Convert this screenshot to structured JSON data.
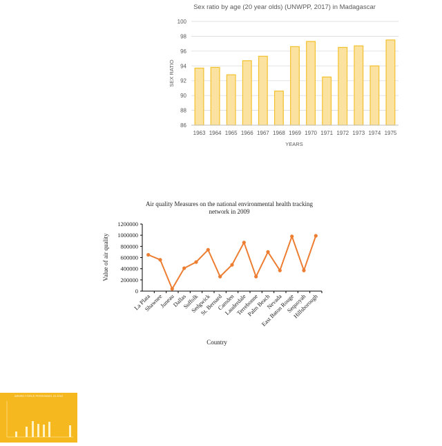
{
  "chart_data": [
    {
      "type": "bar",
      "title": "Sex ratio by age (20 year olds) (UNWPP, 2017) in Madagascar",
      "xlabel": "YEARS",
      "ylabel": "SEX RATIO",
      "categories": [
        "1963",
        "1964",
        "1965",
        "1966",
        "1967",
        "1968",
        "1969",
        "1970",
        "1971",
        "1972",
        "1973",
        "1974",
        "1975"
      ],
      "values": [
        93.7,
        93.8,
        92.8,
        94.7,
        95.3,
        90.6,
        96.6,
        97.3,
        92.5,
        96.5,
        96.7,
        94.0,
        97.5
      ],
      "ylim": [
        86,
        100
      ],
      "yticks": [
        "86",
        "88",
        "90",
        "92",
        "94",
        "96",
        "98",
        "100"
      ],
      "grid": true,
      "colors": {
        "fill": "#fce2a0",
        "stroke": "#f2c12e",
        "grid": "#d9d9d9",
        "text": "#595959"
      }
    },
    {
      "type": "line",
      "title_line1": "Air quality Measures on the national environmental health tracking",
      "title_line2": "network in 2009",
      "xlabel": "Country",
      "ylabel": "Value of air quality",
      "categories": [
        "La Plata",
        "Shawnee",
        "Juneau",
        "Dallas",
        "Suffolk",
        "Sedgwick",
        "St. Bernard",
        "Camden",
        "Lauderdale",
        "Terrebonne",
        "Palm Beach",
        "Nevada",
        "East Baton Rouge",
        "Sequoyah",
        "Hillsborough"
      ],
      "values": [
        650000,
        560000,
        40000,
        410000,
        520000,
        740000,
        260000,
        470000,
        870000,
        260000,
        700000,
        370000,
        980000,
        370000,
        990000
      ],
      "ylim": [
        0,
        1200000
      ],
      "yticks": [
        "0",
        "200000",
        "400000",
        "600000",
        "800000",
        "1000000",
        "1200000"
      ],
      "grid": false,
      "colors": {
        "line": "#ed7d31",
        "axis": "#000000",
        "text": "#222222"
      }
    }
  ],
  "thumbnail": {
    "title": "ARMED FORCE PERSONNEL IN 2010",
    "colors": {
      "background": "#f6b81f",
      "bars": "#fff2c6",
      "text": "#fff5dc"
    }
  }
}
